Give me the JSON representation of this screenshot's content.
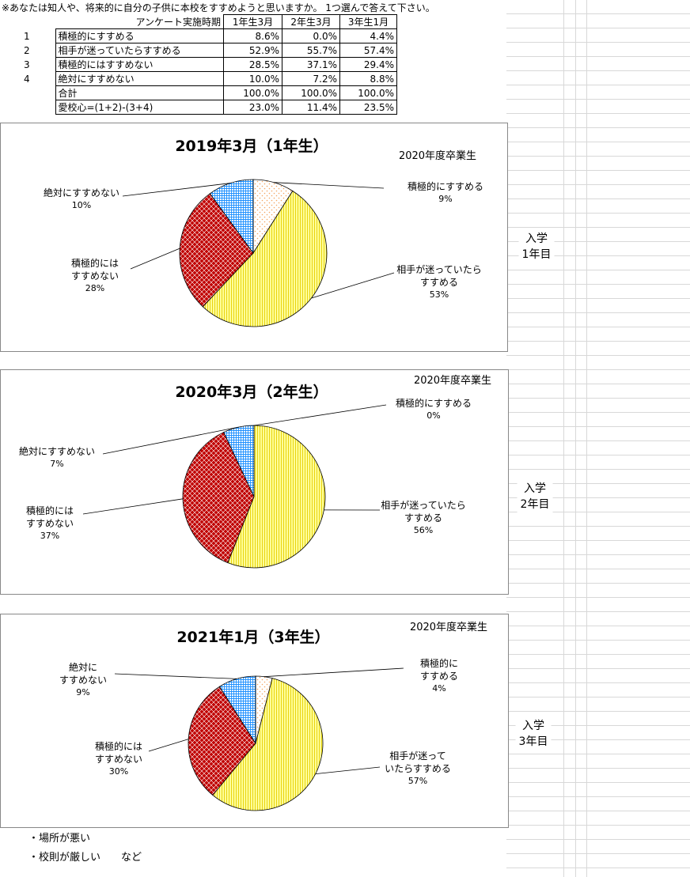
{
  "header": {
    "note": "※あなたは知人や、将来的に自分の子供に本校をすすめようと思いますか。 1つ選んで答えて下さい。"
  },
  "table": {
    "label": "アンケート実施時期",
    "columns": [
      "1年生3月",
      "2年生3月",
      "3年生1月"
    ],
    "rows": [
      {
        "no": "1",
        "label": "積極的にすすめる",
        "values": [
          "8.6%",
          "0.0%",
          "4.4%"
        ]
      },
      {
        "no": "2",
        "label": "相手が迷っていたらすすめる",
        "values": [
          "52.9%",
          "55.7%",
          "57.4%"
        ]
      },
      {
        "no": "3",
        "label": "積極的にはすすめない",
        "values": [
          "28.5%",
          "37.1%",
          "29.4%"
        ]
      },
      {
        "no": "4",
        "label": "絶対にすすめない",
        "values": [
          "10.0%",
          "7.2%",
          "8.8%"
        ]
      },
      {
        "label": "合計",
        "values": [
          "100.0%",
          "100.0%",
          "100.0%"
        ]
      },
      {
        "label": "愛校心=(1+2)-(3+4)",
        "values": [
          "23.0%",
          "11.4%",
          "23.5%"
        ]
      }
    ]
  },
  "chart_data": [
    {
      "type": "pie",
      "title": "2019年3月（1年生）",
      "subtitle": "2020年度卒業生",
      "categories": [
        "積極的にすすめる",
        "相手が迷っていたら\nすすめる",
        "積極的には\nすすめない",
        "絶対にすすめない"
      ],
      "values": [
        9,
        53,
        28,
        10
      ],
      "value_labels": [
        "9%",
        "53%",
        "28%",
        "10%"
      ],
      "colors": [
        "#f4a460",
        "#e6cf00",
        "#c00000",
        "#1e90ff"
      ]
    },
    {
      "type": "pie",
      "title": "2020年3月（2年生）",
      "subtitle": "2020年度卒業生",
      "categories": [
        "積極的にすすめる",
        "相手が迷っていたら\nすすめる",
        "積極的には\nすすめない",
        "絶対にすすめない"
      ],
      "values": [
        0,
        56,
        37,
        7
      ],
      "value_labels": [
        "0%",
        "56%",
        "37%",
        "7%"
      ],
      "colors": [
        "#f4a460",
        "#e6cf00",
        "#c00000",
        "#1e90ff"
      ]
    },
    {
      "type": "pie",
      "title": "2021年1月（3年生）",
      "subtitle": "2020年度卒業生",
      "categories": [
        "積極的に\nすすめる",
        "相手が迷って\nいたらすすめる",
        "積極的には\nすすめない",
        "絶対に\nすすめない"
      ],
      "values": [
        4,
        57,
        30,
        9
      ],
      "value_labels": [
        "4%",
        "57%",
        "30%",
        "9%"
      ],
      "colors": [
        "#f4a460",
        "#e6cf00",
        "#c00000",
        "#1e90ff"
      ]
    }
  ],
  "side_labels": [
    "入学\n1年目",
    "入学\n2年目",
    "入学\n3年目"
  ],
  "footer": [
    "・場所が悪い",
    "・校則が厳しい　　など"
  ]
}
